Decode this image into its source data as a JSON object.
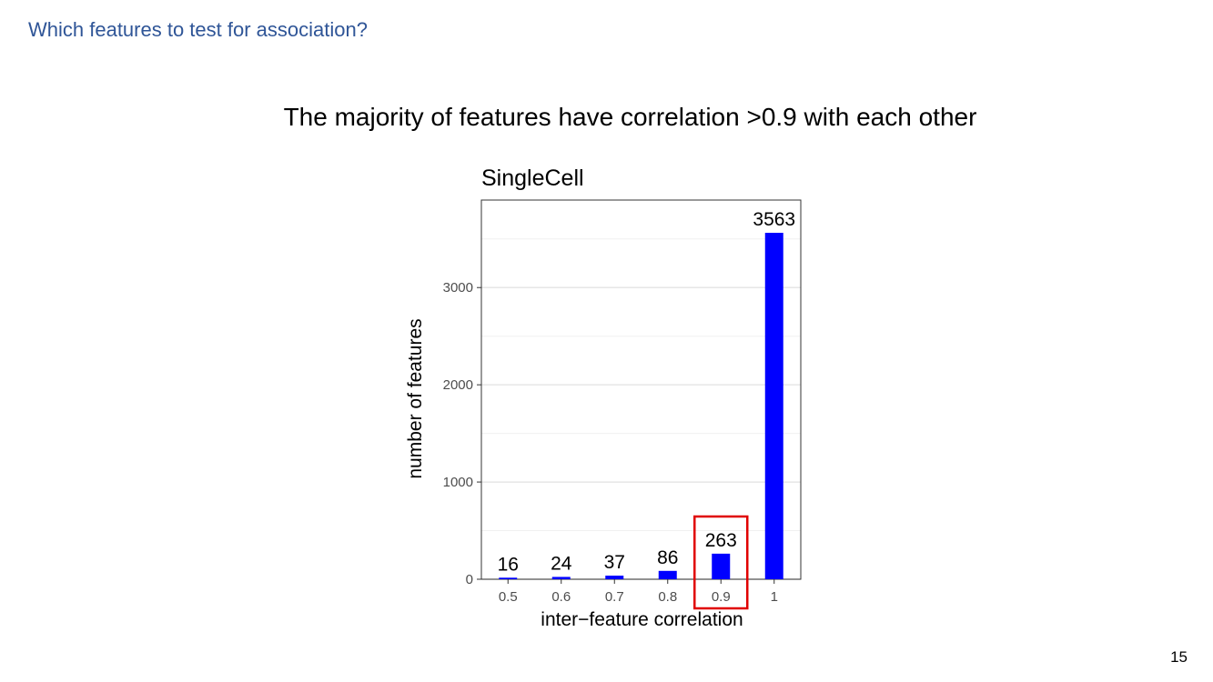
{
  "slide": {
    "title": "Which features to test for association?",
    "headline": "The majority of features have correlation >0.9 with each other",
    "page_number": "15"
  },
  "colors": {
    "title": "#2f5597",
    "bar": "#0000ff",
    "highlight_box": "#e00000"
  },
  "chart_data": {
    "type": "bar",
    "title": "SingleCell",
    "xlabel": "inter−feature correlation",
    "ylabel": "number of features",
    "categories": [
      "0.5",
      "0.6",
      "0.7",
      "0.8",
      "0.9",
      "1"
    ],
    "values": [
      16,
      24,
      37,
      86,
      263,
      3563
    ],
    "data_labels": [
      "16",
      "24",
      "37",
      "86",
      "263",
      "3563"
    ],
    "yticks": [
      0,
      1000,
      2000,
      3000
    ],
    "ylim": [
      0,
      3900
    ],
    "grid": true,
    "highlighted_category": "0.9"
  }
}
